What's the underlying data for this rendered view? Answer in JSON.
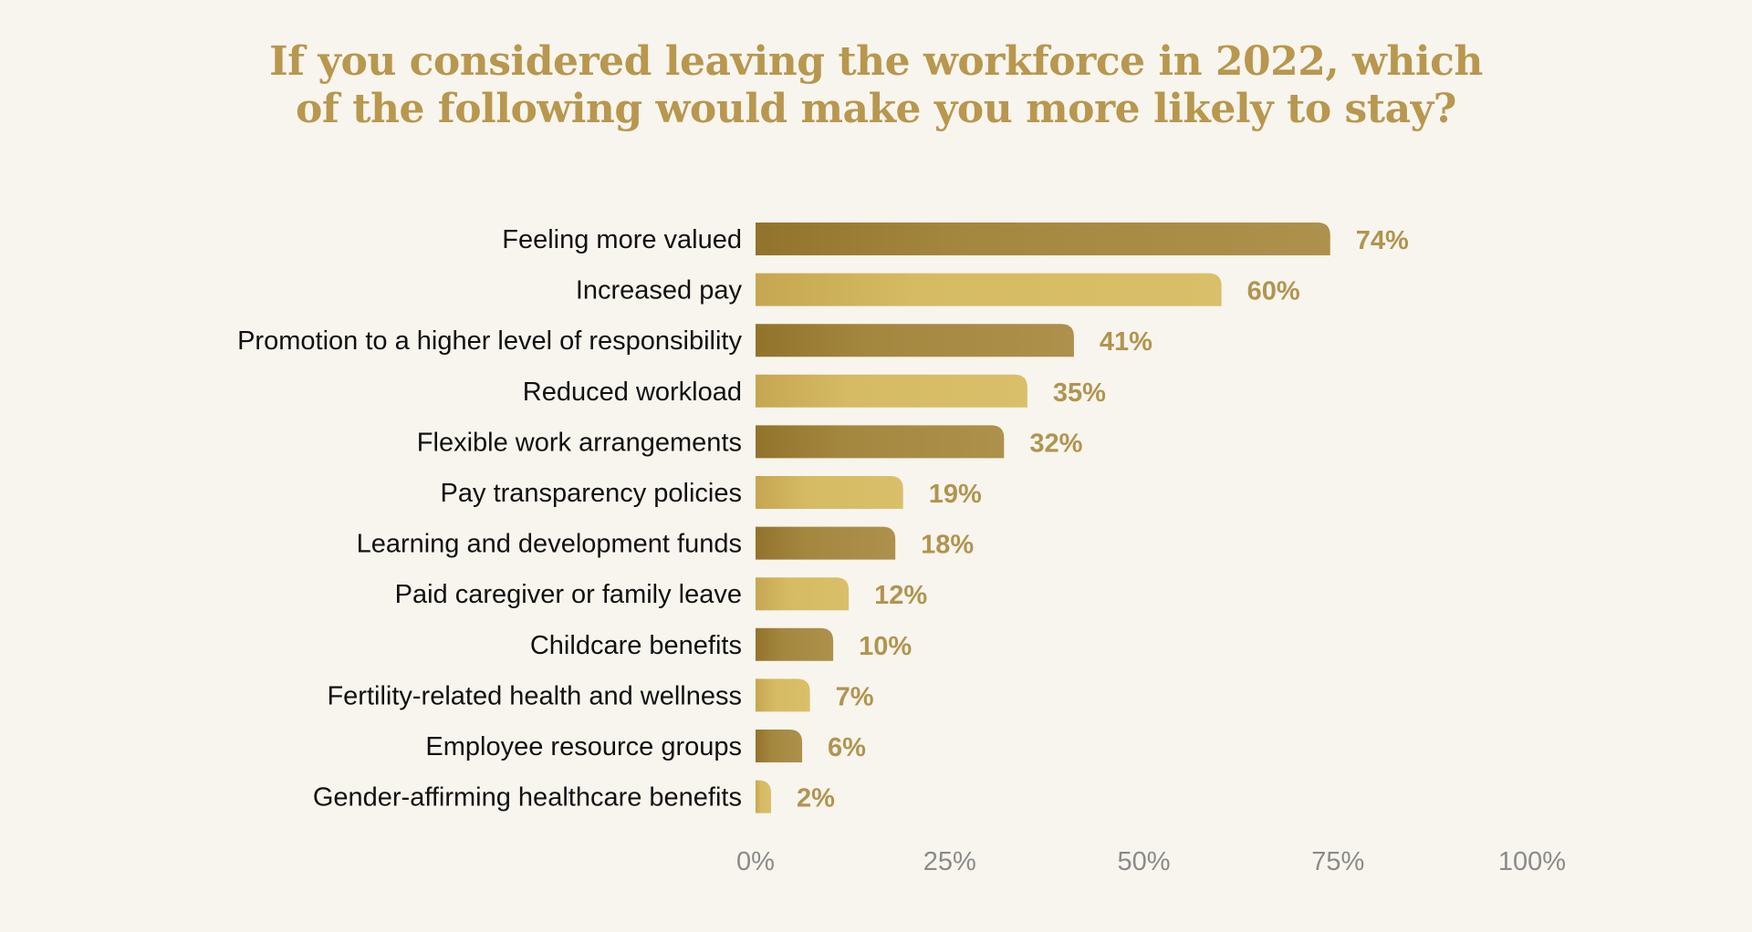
{
  "chart_data": {
    "type": "bar",
    "orientation": "horizontal",
    "title": "If you considered leaving the workforce in 2022, which of the following would make you more likely to stay?",
    "categories": [
      "Feeling more valued",
      "Increased pay",
      "Promotion to a higher level of responsibility",
      "Reduced workload",
      "Flexible work arrangements",
      "Pay transparency policies",
      "Learning and development funds",
      "Paid caregiver or family leave",
      "Childcare benefits",
      "Fertility-related health and wellness",
      "Employee resource groups",
      "Gender-affirming healthcare benefits"
    ],
    "values": [
      74,
      60,
      41,
      35,
      32,
      19,
      18,
      12,
      10,
      7,
      6,
      2
    ],
    "value_labels": [
      "74%",
      "60%",
      "41%",
      "35%",
      "32%",
      "19%",
      "18%",
      "12%",
      "10%",
      "7%",
      "6%",
      "2%"
    ],
    "xlim": [
      0,
      100
    ],
    "x_ticks": [
      0,
      25,
      50,
      75,
      100
    ],
    "x_tick_labels": [
      "0%",
      "25%",
      "50%",
      "75%",
      "100%"
    ],
    "xlabel": "",
    "ylabel": "",
    "grid": false,
    "legend": "none",
    "colors": {
      "bar_dark_start": "#92732c",
      "bar_dark_end": "#ab8f4a",
      "bar_light_start": "#c9aa55",
      "bar_light_end": "#d8bd67",
      "title": "#b8974e",
      "value_label": "#b1944f",
      "category_label": "#111111",
      "tick_label": "#8a8a8a",
      "background": "#f8f5ee"
    }
  }
}
